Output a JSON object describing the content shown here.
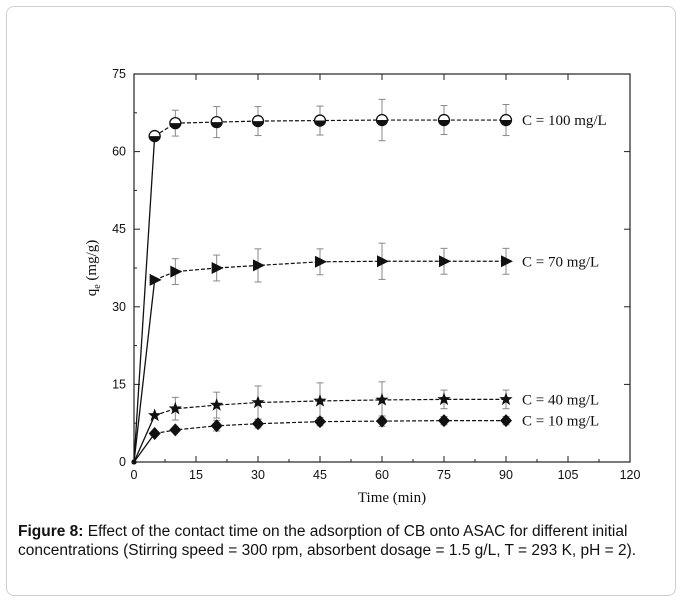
{
  "chart_data": {
    "type": "line",
    "xlabel": "Time (min)",
    "ylabel": "q",
    "ylabel_subscript": "e",
    "ylabel_unit": " (mg/g)",
    "xlim": [
      0,
      120
    ],
    "ylim": [
      0,
      75
    ],
    "xticks": [
      0,
      15,
      30,
      45,
      60,
      75,
      90,
      105,
      120
    ],
    "yticks": [
      0,
      15,
      30,
      45,
      60,
      75
    ],
    "grid": false,
    "series": [
      {
        "name": "C = 100 mg/L",
        "marker": "half-filled-circle",
        "x": [
          0,
          5,
          10,
          20,
          30,
          45,
          60,
          75,
          90
        ],
        "y": [
          0,
          63,
          65.5,
          65.7,
          65.9,
          66.0,
          66.1,
          66.1,
          66.1
        ],
        "err": [
          0,
          0.8,
          2.5,
          3.0,
          2.8,
          2.8,
          4.0,
          2.8,
          3.0
        ]
      },
      {
        "name": "C = 70 mg/L",
        "marker": "right-triangle",
        "x": [
          0,
          5,
          10,
          20,
          30,
          45,
          60,
          75,
          90
        ],
        "y": [
          0,
          35.2,
          36.8,
          37.5,
          38.0,
          38.7,
          38.8,
          38.8,
          38.8
        ],
        "err": [
          0,
          0,
          2.5,
          2.5,
          3.2,
          2.5,
          3.5,
          2.5,
          2.5
        ]
      },
      {
        "name": "C = 40 mg/L",
        "marker": "star",
        "x": [
          0,
          5,
          10,
          20,
          30,
          45,
          60,
          75,
          90
        ],
        "y": [
          0,
          9.0,
          10.3,
          11.0,
          11.5,
          11.8,
          12.0,
          12.1,
          12.1
        ],
        "err": [
          0,
          0,
          2.2,
          2.5,
          3.2,
          3.5,
          3.5,
          1.8,
          1.8
        ]
      },
      {
        "name": "C = 10 mg/L",
        "marker": "diamond",
        "x": [
          0,
          5,
          10,
          20,
          30,
          45,
          60,
          75,
          90
        ],
        "y": [
          0,
          5.5,
          6.2,
          7.0,
          7.4,
          7.8,
          7.9,
          8.0,
          8.0
        ],
        "err": [
          0,
          0,
          0,
          1.0,
          0.8,
          0.8,
          1.0,
          0.8,
          0.8
        ]
      }
    ]
  },
  "caption": {
    "label": "Figure 8:",
    "text": " Effect of the contact time on the adsorption of CB onto ASAC for different initial concentrations (Stirring speed = 300 rpm,  absorbent dosage = 1.5 g/L, T = 293 K, pH = 2)."
  }
}
